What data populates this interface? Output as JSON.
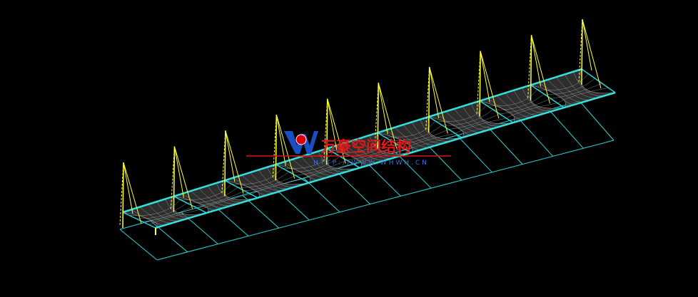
{
  "logo": {
    "title": "万豪空间结构",
    "url": "HTTP://WWW.WHWH.CN"
  }
}
